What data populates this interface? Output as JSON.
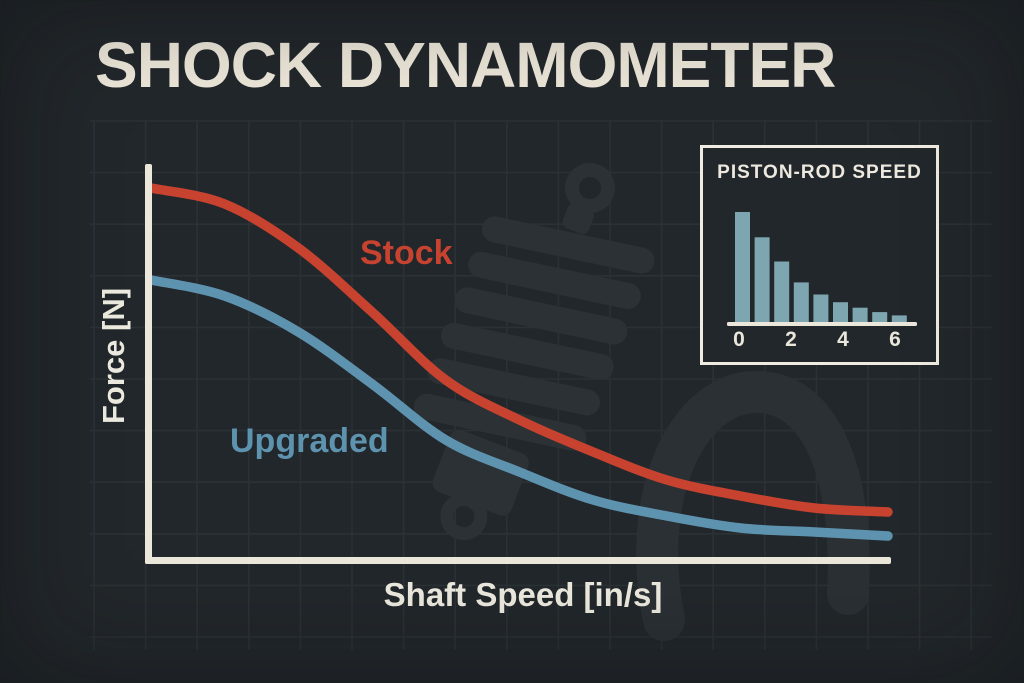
{
  "page": {
    "title": "SHOCK DYNAMOMETER"
  },
  "colors": {
    "background": "#22272b",
    "axis_cream": "#ebe7da",
    "accent_red": "#c8432f",
    "accent_blue": "#5e93af",
    "bar_fill": "#7da6b0",
    "text": "#eceade",
    "watermark": "#2b3134",
    "grid": "#2b3135"
  },
  "chart_data": [
    {
      "type": "line",
      "title": "SHOCK DYNAMOMETER",
      "xlabel": "Shaft Speed [in/s]",
      "ylabel": "Force [N]",
      "x": [
        0,
        1,
        2,
        3,
        4,
        5,
        6,
        7,
        8,
        9,
        10
      ],
      "series": [
        {
          "name": "Stock",
          "color": "#c8432f",
          "values": [
            0.94,
            0.9,
            0.79,
            0.63,
            0.46,
            0.36,
            0.28,
            0.21,
            0.17,
            0.14,
            0.13
          ]
        },
        {
          "name": "Upgraded",
          "color": "#5e93af",
          "values": [
            0.71,
            0.67,
            0.58,
            0.45,
            0.31,
            0.23,
            0.16,
            0.12,
            0.09,
            0.08,
            0.07
          ]
        }
      ],
      "xlim": [
        0,
        10
      ],
      "ylim": [
        0,
        1
      ],
      "y_unit": "relative",
      "grid": true,
      "legend_position": "inline-labels"
    },
    {
      "type": "bar",
      "title": "PISTON-ROD SPEED",
      "x": [
        0,
        0.75,
        1.5,
        2.25,
        3,
        3.75,
        4.5,
        5.25,
        6
      ],
      "values": [
        1.0,
        0.77,
        0.55,
        0.36,
        0.25,
        0.18,
        0.13,
        0.09,
        0.06
      ],
      "xticks": [
        "0",
        "2",
        "4",
        "6"
      ],
      "xlim": [
        0,
        7
      ],
      "y_unit": "relative",
      "bar_color": "#7da6b0"
    }
  ]
}
